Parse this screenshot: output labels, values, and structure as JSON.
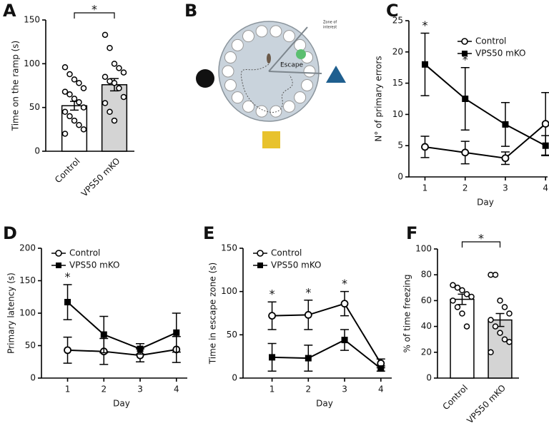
{
  "maze": {
    "label": "B",
    "escape": "Escape",
    "zone": [
      "Zone of",
      "interest"
    ]
  },
  "chart_data": [
    {
      "label": "A",
      "type": "bar",
      "ylabel": "Time on the ramp (s)",
      "categories": [
        "Control",
        "VPS50 mKO"
      ],
      "values": [
        52,
        76
      ],
      "errors": [
        5,
        7
      ],
      "colors": [
        "#ffffff",
        "#d4d4d4"
      ],
      "points": [
        [
          96,
          88,
          82,
          78,
          72,
          68,
          65,
          60,
          56,
          50,
          45,
          40,
          35,
          30,
          25,
          20
        ],
        [
          133,
          118,
          100,
          95,
          90,
          85,
          80,
          78,
          72,
          62,
          55,
          45,
          35
        ]
      ],
      "ylim": [
        0,
        150
      ],
      "yticks": [
        0,
        50,
        100,
        150
      ],
      "significance": "*"
    },
    {
      "label": "C",
      "type": "line",
      "xlabel": "Day",
      "ylabel": "N° of primary errors",
      "x": [
        1,
        2,
        3,
        4
      ],
      "xlim": [
        0.6,
        4.05
      ],
      "xticks": [
        1,
        2,
        3,
        4
      ],
      "ylim": [
        0,
        25
      ],
      "yticks": [
        0,
        5,
        10,
        15,
        20,
        25
      ],
      "legend": "upper right",
      "series": [
        {
          "name": "Control",
          "marker": "circle-open",
          "color": "#000000",
          "values": [
            4.8,
            3.9,
            3.0,
            8.5
          ],
          "errors": [
            1.7,
            1.8,
            1.0,
            5.0
          ]
        },
        {
          "name": "VPS50 mKO",
          "marker": "square",
          "color": "#000000",
          "values": [
            18,
            12.5,
            8.4,
            5.0
          ],
          "errors": [
            5.0,
            5.0,
            3.5,
            1.6
          ]
        }
      ],
      "annotations": [
        {
          "x": 1,
          "text": "*"
        },
        {
          "x": 2,
          "text": "*"
        }
      ]
    },
    {
      "label": "D",
      "type": "line",
      "xlabel": "Day",
      "ylabel": "Primary latency (s)",
      "x": [
        1,
        2,
        3,
        4
      ],
      "xlim": [
        0.28,
        4.3
      ],
      "xticks": [
        1,
        2,
        3,
        4
      ],
      "ylim": [
        0,
        200
      ],
      "yticks": [
        0,
        50,
        100,
        150,
        200
      ],
      "legend": "upper left",
      "series": [
        {
          "name": "Control",
          "marker": "circle-open",
          "color": "#000000",
          "values": [
            43,
            41,
            35,
            44
          ],
          "errors": [
            20,
            20,
            10,
            20
          ]
        },
        {
          "name": "VPS50 mKO",
          "marker": "square",
          "color": "#000000",
          "values": [
            117,
            67,
            45,
            70
          ],
          "errors": [
            27,
            28,
            8,
            30
          ]
        }
      ],
      "annotations": [
        {
          "x": 1,
          "text": "*"
        }
      ]
    },
    {
      "label": "E",
      "type": "line",
      "xlabel": "Day",
      "ylabel": "Time in escape zone (s)",
      "x": [
        1,
        2,
        3,
        4
      ],
      "xlim": [
        0.2,
        4.3
      ],
      "xticks": [
        1,
        2,
        3,
        4
      ],
      "ylim": [
        0,
        150
      ],
      "yticks": [
        0,
        50,
        100,
        150
      ],
      "legend": "upper left",
      "series": [
        {
          "name": "Control",
          "marker": "circle-open",
          "color": "#000000",
          "values": [
            72,
            73,
            86,
            17
          ],
          "errors": [
            16,
            17,
            14,
            5
          ]
        },
        {
          "name": "VPS50 mKO",
          "marker": "square",
          "color": "#000000",
          "values": [
            24,
            23,
            44,
            11
          ],
          "errors": [
            16,
            15,
            12,
            3
          ]
        }
      ],
      "annotations": [
        {
          "x": 1,
          "text": "*"
        },
        {
          "x": 2,
          "text": "*"
        },
        {
          "x": 3,
          "text": "*"
        }
      ]
    },
    {
      "label": "F",
      "type": "bar",
      "ylabel": "% of time freezing",
      "categories": [
        "Control",
        "VPS50 mKO"
      ],
      "values": [
        61,
        45
      ],
      "errors": [
        4,
        5
      ],
      "colors": [
        "#ffffff",
        "#d4d4d4"
      ],
      "points": [
        [
          72,
          70,
          68,
          65,
          63,
          60,
          55,
          50,
          40
        ],
        [
          80,
          80,
          60,
          55,
          50,
          45,
          40,
          35,
          30,
          28,
          20
        ]
      ],
      "ylim": [
        0,
        100
      ],
      "yticks": [
        0,
        20,
        40,
        60,
        80,
        100
      ],
      "significance": "*"
    }
  ]
}
